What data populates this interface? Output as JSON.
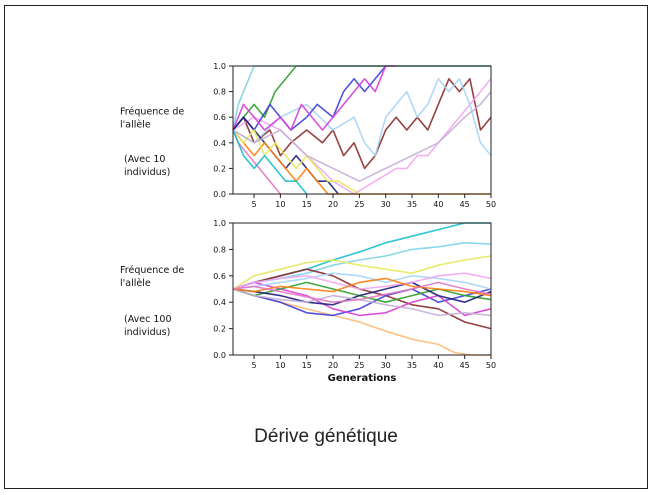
{
  "caption": "Dérive génétique",
  "chart_data": [
    {
      "type": "line",
      "ylabel_lines": [
        "Fréquence de",
        "l'allèle"
      ],
      "population_note_lines": [
        "(Avec 10",
        "individus)"
      ],
      "xlabel": "",
      "xlim": [
        1,
        50
      ],
      "ylim": [
        0,
        1
      ],
      "xticks": [
        5,
        10,
        15,
        20,
        25,
        30,
        35,
        40,
        45,
        50
      ],
      "yticks": [
        "0.0",
        "0.2",
        "0.4",
        "0.6",
        "0.8",
        "1.0"
      ],
      "grid": false,
      "series": [
        {
          "color": "#2ca02c",
          "x": [
            1,
            3,
            5,
            7,
            9,
            11,
            13,
            15,
            17,
            20,
            25,
            30,
            35,
            40,
            45,
            50
          ],
          "y": [
            0.5,
            0.6,
            0.7,
            0.6,
            0.8,
            0.9,
            1.0,
            1.0,
            1.0,
            1.0,
            1.0,
            1.0,
            1.0,
            1.0,
            1.0,
            1.0
          ]
        },
        {
          "color": "#7fd3e8",
          "x": [
            1,
            2,
            3,
            4,
            5,
            6,
            7,
            8,
            10,
            12,
            15,
            20,
            30,
            40,
            50
          ],
          "y": [
            0.5,
            0.7,
            0.8,
            0.9,
            1.0,
            1.0,
            1.0,
            1.0,
            1.0,
            1.0,
            1.0,
            1.0,
            1.0,
            1.0,
            1.0
          ]
        },
        {
          "color": "#8b2c2c",
          "x": [
            1,
            3,
            5,
            8,
            10,
            12,
            15,
            18,
            20,
            22,
            24,
            26,
            28,
            30,
            32,
            34,
            36,
            38,
            40,
            42,
            44,
            46,
            48,
            50
          ],
          "y": [
            0.5,
            0.6,
            0.4,
            0.5,
            0.3,
            0.4,
            0.5,
            0.4,
            0.5,
            0.3,
            0.4,
            0.2,
            0.3,
            0.5,
            0.6,
            0.5,
            0.6,
            0.5,
            0.7,
            0.9,
            0.8,
            0.9,
            0.5,
            0.6
          ]
        },
        {
          "color": "#f4a6f0",
          "x": [
            1,
            5,
            10,
            15,
            20,
            24,
            26,
            28,
            30,
            32,
            34,
            36,
            38,
            40,
            42,
            44,
            46,
            48,
            50
          ],
          "y": [
            0.5,
            0.6,
            0.5,
            0.3,
            0.1,
            0.0,
            0.05,
            0.1,
            0.15,
            0.2,
            0.2,
            0.3,
            0.3,
            0.4,
            0.5,
            0.6,
            0.7,
            0.8,
            0.9
          ]
        },
        {
          "color": "#a9d4f5",
          "x": [
            1,
            5,
            10,
            15,
            20,
            24,
            26,
            28,
            30,
            32,
            34,
            36,
            38,
            40,
            42,
            44,
            46,
            48,
            50
          ],
          "y": [
            0.5,
            0.4,
            0.6,
            0.7,
            0.5,
            0.6,
            0.4,
            0.3,
            0.6,
            0.7,
            0.8,
            0.6,
            0.7,
            0.9,
            0.8,
            0.9,
            0.7,
            0.4,
            0.3
          ]
        },
        {
          "color": "#3f3fd9",
          "x": [
            1,
            3,
            5,
            8,
            10,
            12,
            15,
            17,
            20,
            22,
            24,
            26,
            28,
            30
          ],
          "y": [
            0.5,
            0.6,
            0.5,
            0.7,
            0.6,
            0.5,
            0.6,
            0.7,
            0.6,
            0.8,
            0.9,
            0.8,
            0.9,
            1.0
          ]
        },
        {
          "color": "#d63fd6",
          "x": [
            1,
            3,
            5,
            7,
            10,
            12,
            14,
            16,
            18,
            20,
            22,
            24,
            26,
            28,
            30,
            32
          ],
          "y": [
            0.5,
            0.7,
            0.6,
            0.5,
            0.6,
            0.5,
            0.7,
            0.6,
            0.5,
            0.6,
            0.7,
            0.8,
            0.9,
            0.8,
            1.0,
            1.0
          ]
        },
        {
          "color": "#1f1f7a",
          "x": [
            1,
            3,
            5,
            7,
            9,
            11,
            13,
            15,
            17,
            19,
            21
          ],
          "y": [
            0.5,
            0.6,
            0.5,
            0.4,
            0.3,
            0.2,
            0.3,
            0.2,
            0.1,
            0.1,
            0.0
          ]
        },
        {
          "color": "#ff7f0e",
          "x": [
            1,
            3,
            5,
            7,
            9,
            11,
            13,
            15,
            17,
            19,
            20,
            50
          ],
          "y": [
            0.5,
            0.4,
            0.3,
            0.4,
            0.3,
            0.2,
            0.1,
            0.2,
            0.1,
            0.0,
            0.0,
            0.0
          ]
        },
        {
          "color": "#e8e85a",
          "x": [
            1,
            3,
            5,
            7,
            9,
            11,
            13,
            15,
            17,
            19,
            21,
            23,
            25
          ],
          "y": [
            0.5,
            0.4,
            0.5,
            0.3,
            0.4,
            0.3,
            0.2,
            0.3,
            0.2,
            0.1,
            0.1,
            0.05,
            0.0
          ]
        },
        {
          "color": "#e377c2",
          "x": [
            1,
            2,
            4,
            6,
            8,
            10
          ],
          "y": [
            0.5,
            0.4,
            0.3,
            0.2,
            0.1,
            0.0
          ]
        },
        {
          "color": "#17becf",
          "x": [
            1,
            3,
            5,
            7,
            9,
            11,
            13,
            15
          ],
          "y": [
            0.5,
            0.3,
            0.2,
            0.3,
            0.2,
            0.1,
            0.1,
            0.0
          ]
        },
        {
          "color": "#c5b0d5",
          "x": [
            1,
            5,
            10,
            15,
            20,
            25,
            30,
            35,
            40,
            45,
            48,
            50
          ],
          "y": [
            0.5,
            0.4,
            0.5,
            0.3,
            0.2,
            0.1,
            0.2,
            0.3,
            0.4,
            0.6,
            0.7,
            0.8
          ]
        }
      ]
    },
    {
      "type": "line",
      "ylabel_lines": [
        "Fréquence de",
        "l'allèle"
      ],
      "population_note_lines": [
        "(Avec 100",
        "individus)"
      ],
      "xlabel": "Generations",
      "xlim": [
        1,
        50
      ],
      "ylim": [
        0,
        1
      ],
      "xticks": [
        5,
        10,
        15,
        20,
        25,
        30,
        35,
        40,
        45,
        50
      ],
      "yticks": [
        "0.0",
        "0.2",
        "0.4",
        "0.6",
        "0.8",
        "1.0"
      ],
      "grid": false,
      "series": [
        {
          "color": "#17becf",
          "x": [
            1,
            5,
            10,
            15,
            20,
            25,
            30,
            35,
            40,
            45,
            50
          ],
          "y": [
            0.5,
            0.55,
            0.6,
            0.65,
            0.72,
            0.78,
            0.85,
            0.9,
            0.95,
            1.0,
            1.0
          ]
        },
        {
          "color": "#7fd3e8",
          "x": [
            1,
            5,
            10,
            15,
            20,
            25,
            30,
            35,
            40,
            45,
            50
          ],
          "y": [
            0.5,
            0.55,
            0.58,
            0.62,
            0.68,
            0.72,
            0.75,
            0.8,
            0.82,
            0.85,
            0.84
          ]
        },
        {
          "color": "#ffbb78",
          "x": [
            1,
            5,
            10,
            15,
            20,
            25,
            30,
            35,
            40,
            43,
            46,
            50
          ],
          "y": [
            0.5,
            0.45,
            0.4,
            0.35,
            0.3,
            0.25,
            0.18,
            0.12,
            0.08,
            0.02,
            0.0,
            0.0
          ]
        },
        {
          "color": "#8b2c2c",
          "x": [
            1,
            5,
            10,
            15,
            20,
            25,
            30,
            35,
            40,
            45,
            50
          ],
          "y": [
            0.5,
            0.55,
            0.6,
            0.65,
            0.6,
            0.5,
            0.45,
            0.38,
            0.35,
            0.25,
            0.2
          ]
        },
        {
          "color": "#3f3fd9",
          "x": [
            1,
            5,
            10,
            15,
            20,
            25,
            30,
            35,
            40,
            45,
            50
          ],
          "y": [
            0.5,
            0.45,
            0.4,
            0.32,
            0.3,
            0.35,
            0.45,
            0.5,
            0.4,
            0.45,
            0.5
          ]
        },
        {
          "color": "#d63fd6",
          "x": [
            1,
            5,
            10,
            15,
            20,
            25,
            30,
            35,
            40,
            45,
            50
          ],
          "y": [
            0.5,
            0.55,
            0.5,
            0.45,
            0.35,
            0.3,
            0.32,
            0.4,
            0.45,
            0.3,
            0.35
          ]
        },
        {
          "color": "#e8e85a",
          "x": [
            1,
            5,
            10,
            15,
            20,
            25,
            30,
            35,
            40,
            45,
            50
          ],
          "y": [
            0.5,
            0.6,
            0.65,
            0.7,
            0.72,
            0.68,
            0.65,
            0.62,
            0.68,
            0.72,
            0.75
          ]
        },
        {
          "color": "#2ca02c",
          "x": [
            1,
            5,
            10,
            15,
            20,
            25,
            30,
            35,
            40,
            45,
            50
          ],
          "y": [
            0.5,
            0.45,
            0.5,
            0.55,
            0.5,
            0.45,
            0.4,
            0.45,
            0.5,
            0.45,
            0.42
          ]
        },
        {
          "color": "#1f1f7a",
          "x": [
            1,
            5,
            10,
            15,
            20,
            25,
            30,
            35,
            40,
            45,
            50
          ],
          "y": [
            0.5,
            0.48,
            0.45,
            0.4,
            0.38,
            0.45,
            0.5,
            0.55,
            0.45,
            0.4,
            0.48
          ]
        },
        {
          "color": "#a9d4f5",
          "x": [
            1,
            5,
            10,
            15,
            20,
            25,
            30,
            35,
            40,
            45,
            50
          ],
          "y": [
            0.5,
            0.52,
            0.55,
            0.58,
            0.62,
            0.6,
            0.55,
            0.6,
            0.58,
            0.55,
            0.5
          ]
        },
        {
          "color": "#f4a6f0",
          "x": [
            1,
            5,
            10,
            15,
            20,
            25,
            30,
            35,
            40,
            45,
            50
          ],
          "y": [
            0.5,
            0.55,
            0.58,
            0.6,
            0.55,
            0.5,
            0.52,
            0.55,
            0.6,
            0.62,
            0.58
          ]
        },
        {
          "color": "#c5b0d5",
          "x": [
            1,
            5,
            10,
            15,
            20,
            25,
            30,
            35,
            40,
            45,
            50
          ],
          "y": [
            0.5,
            0.45,
            0.42,
            0.4,
            0.45,
            0.42,
            0.38,
            0.35,
            0.3,
            0.32,
            0.3
          ]
        },
        {
          "color": "#ff7f0e",
          "x": [
            1,
            5,
            10,
            15,
            20,
            25,
            30,
            35,
            40,
            45,
            50
          ],
          "y": [
            0.5,
            0.48,
            0.52,
            0.5,
            0.48,
            0.55,
            0.58,
            0.52,
            0.5,
            0.48,
            0.45
          ]
        },
        {
          "color": "#e377c2",
          "x": [
            1,
            5,
            10,
            15,
            20,
            25,
            30,
            35,
            40,
            45,
            50
          ],
          "y": [
            0.5,
            0.52,
            0.48,
            0.44,
            0.4,
            0.42,
            0.46,
            0.5,
            0.55,
            0.5,
            0.46
          ]
        }
      ]
    }
  ]
}
